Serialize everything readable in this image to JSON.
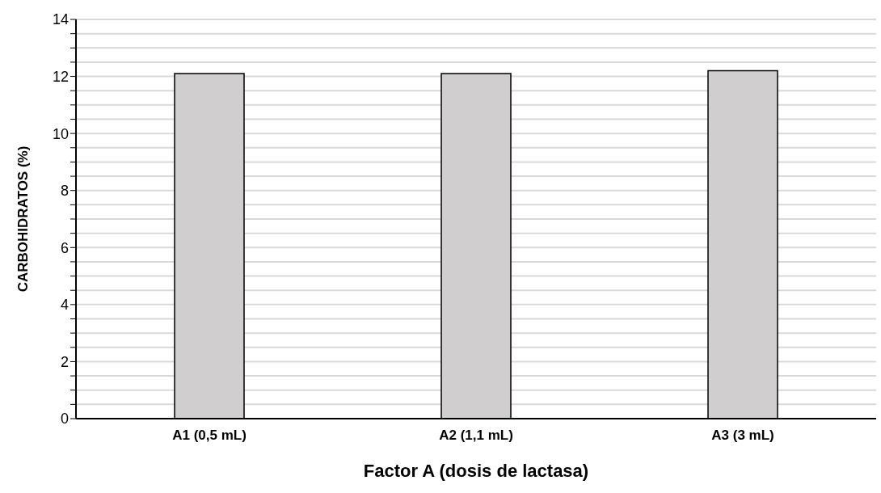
{
  "chart_data": {
    "type": "bar",
    "xlabel": "Factor A (dosis de lactasa)",
    "ylabel": "CARBOHIDRATOS (%)",
    "categories": [
      "A1 (0,5 mL)",
      "A2 (1,1 mL)",
      "A3 (3 mL)"
    ],
    "values": [
      12.1,
      12.1,
      12.2
    ],
    "color": "#d0cecf",
    "ylim": [
      0,
      14
    ],
    "yticks": [
      0,
      {
        "value": 0.5,
        "label": null
      },
      {
        "value": 1,
        "label": null
      },
      {
        "value": 1.5,
        "label": null
      },
      2,
      {
        "value": 2.5,
        "label": null
      },
      {
        "value": 3,
        "label": null
      },
      {
        "value": 3.5,
        "label": null
      },
      4,
      {
        "value": 4.5,
        "label": null
      },
      {
        "value": 5,
        "label": null
      },
      {
        "value": 5.5,
        "label": null
      },
      6,
      {
        "value": 6.5,
        "label": null
      },
      {
        "value": 7,
        "label": null
      },
      {
        "value": 7.5,
        "label": null
      },
      8,
      {
        "value": 8.5,
        "label": null
      },
      {
        "value": 9,
        "label": null
      },
      {
        "value": 9.5,
        "label": null
      },
      10,
      {
        "value": 10.5,
        "label": null
      },
      {
        "value": 11,
        "label": null
      },
      {
        "value": 11.5,
        "label": null
      },
      12,
      {
        "value": 12.5,
        "label": null
      },
      {
        "value": 13,
        "label": null
      },
      {
        "value": 13.5,
        "label": null
      },
      14
    ],
    "grid": "y",
    "legend": false
  }
}
